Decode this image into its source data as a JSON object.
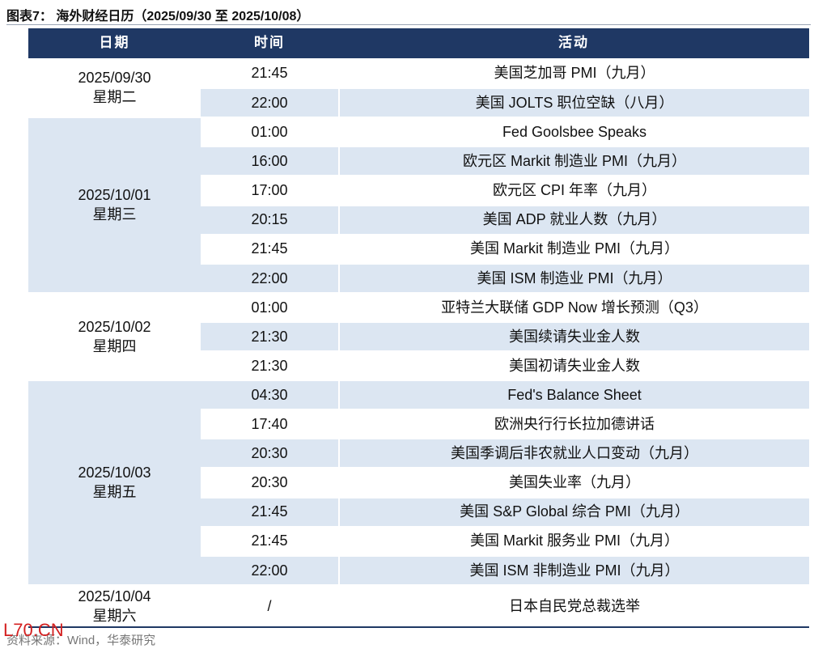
{
  "title": "图表7：  海外财经日历（2025/09/30 至 2025/10/08）",
  "table": {
    "headers": [
      "日期",
      "时间",
      "活动"
    ],
    "groups": [
      {
        "date": "2025/09/30",
        "weekday": "星期二",
        "events": [
          {
            "time": "21:45",
            "activity": "美国芝加哥 PMI（九月）"
          },
          {
            "time": "22:00",
            "activity": "美国 JOLTS 职位空缺（八月）"
          }
        ]
      },
      {
        "date": "2025/10/01",
        "weekday": "星期三",
        "events": [
          {
            "time": "01:00",
            "activity": "Fed Goolsbee Speaks"
          },
          {
            "time": "16:00",
            "activity": "欧元区 Markit 制造业 PMI（九月）"
          },
          {
            "time": "17:00",
            "activity": "欧元区 CPI 年率（九月）"
          },
          {
            "time": "20:15",
            "activity": "美国 ADP 就业人数（九月）"
          },
          {
            "time": "21:45",
            "activity": "美国 Markit 制造业 PMI（九月）"
          },
          {
            "time": "22:00",
            "activity": "美国 ISM 制造业 PMI（九月）"
          }
        ]
      },
      {
        "date": "2025/10/02",
        "weekday": "星期四",
        "events": [
          {
            "time": "01:00",
            "activity": "亚特兰大联储 GDP Now 增长预测（Q3）"
          },
          {
            "time": "21:30",
            "activity": "美国续请失业金人数"
          },
          {
            "time": "21:30",
            "activity": "美国初请失业金人数"
          }
        ]
      },
      {
        "date": "2025/10/03",
        "weekday": "星期五",
        "events": [
          {
            "time": "04:30",
            "activity": "Fed's Balance Sheet"
          },
          {
            "time": "17:40",
            "activity": "欧洲央行行长拉加德讲话"
          },
          {
            "time": "20:30",
            "activity": "美国季调后非农就业人口变动（九月）"
          },
          {
            "time": "20:30",
            "activity": "美国失业率（九月）"
          },
          {
            "time": "21:45",
            "activity": "美国 S&P Global 综合 PMI（九月）"
          },
          {
            "time": "21:45",
            "activity": "美国 Markit 服务业 PMI（九月）"
          },
          {
            "time": "22:00",
            "activity": "美国 ISM 非制造业 PMI（九月）"
          }
        ]
      },
      {
        "date": "2025/10/04",
        "weekday": "星期六",
        "events": [
          {
            "time": "/",
            "activity": "日本自民党总裁选举"
          }
        ]
      }
    ]
  },
  "source": "资料来源：Wind，华泰研究",
  "watermark": "L70.CN"
}
